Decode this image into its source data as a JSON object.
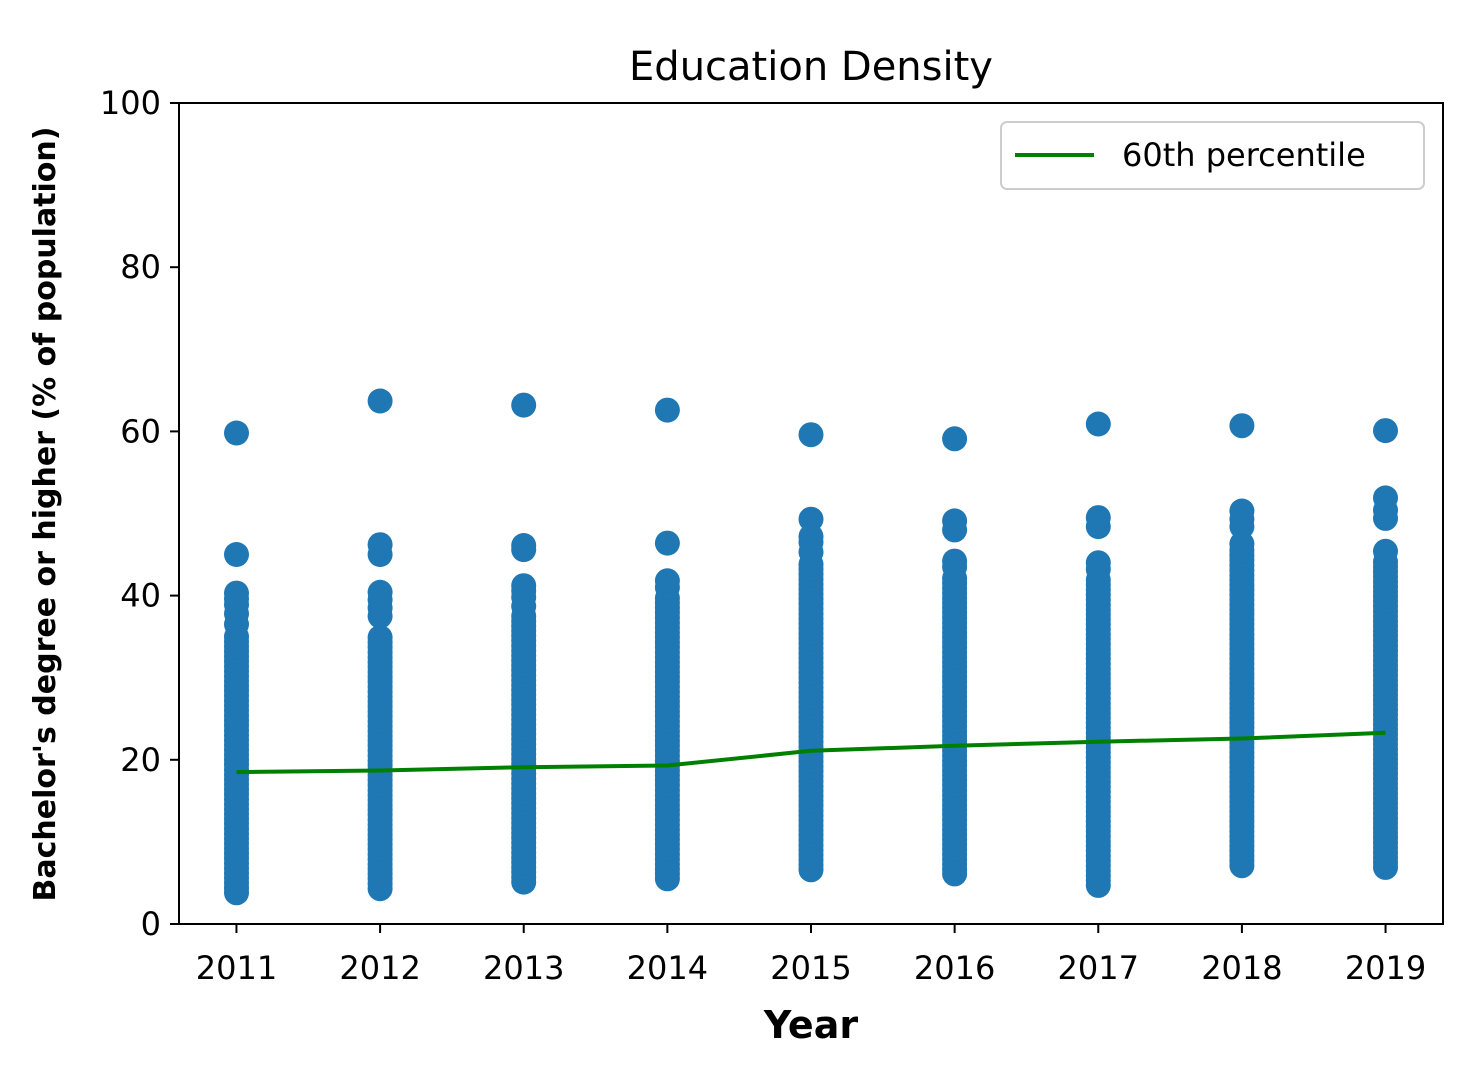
{
  "chart_data": {
    "type": "scatter",
    "title": "Education Density",
    "xlabel": "Year",
    "ylabel": "Bachelor's degree or higher (% of population)",
    "xlim": [
      2010.6,
      2019.4
    ],
    "ylim": [
      0,
      100
    ],
    "x_ticks": [
      2011,
      2012,
      2013,
      2014,
      2015,
      2016,
      2017,
      2018,
      2019
    ],
    "y_ticks": [
      0,
      20,
      40,
      60,
      80,
      100
    ],
    "legend_position": "top-right",
    "grid": false,
    "scatter_series": {
      "name": "",
      "color": "#1f77b4",
      "points": [
        {
          "x": 2011,
          "min": 3.8,
          "dense_max": 35.5,
          "extra": [
            36.5,
            37.8,
            38.9,
            39.6,
            40.3,
            45.0,
            59.8
          ]
        },
        {
          "x": 2012,
          "min": 4.3,
          "dense_max": 35.0,
          "extra": [
            37.5,
            38.5,
            39.5,
            40.4,
            45.0,
            46.2,
            63.7
          ]
        },
        {
          "x": 2013,
          "min": 5.1,
          "dense_max": 37.5,
          "extra": [
            38.7,
            39.8,
            40.6,
            41.2,
            45.6,
            46.1,
            63.2
          ]
        },
        {
          "x": 2014,
          "min": 5.5,
          "dense_max": 40.0,
          "extra": [
            41.0,
            41.8,
            46.4,
            62.6
          ]
        },
        {
          "x": 2015,
          "min": 6.6,
          "dense_max": 44.0,
          "extra": [
            45.3,
            46.5,
            47.2,
            49.3,
            59.6
          ]
        },
        {
          "x": 2016,
          "min": 6.1,
          "dense_max": 42.5,
          "extra": [
            43.5,
            44.2,
            48.0,
            49.1,
            59.1
          ]
        },
        {
          "x": 2017,
          "min": 4.7,
          "dense_max": 42.0,
          "extra": [
            43.2,
            44.0,
            48.4,
            49.5,
            60.9
          ]
        },
        {
          "x": 2018,
          "min": 7.1,
          "dense_max": 45.5,
          "extra": [
            46.3,
            48.4,
            49.3,
            50.3,
            60.7
          ]
        },
        {
          "x": 2019,
          "min": 6.9,
          "dense_max": 44.5,
          "extra": [
            45.4,
            49.4,
            50.4,
            51.9,
            60.1
          ]
        }
      ]
    },
    "series": [
      {
        "name": "60th percentile",
        "type": "line",
        "color": "#008000",
        "x": [
          2011,
          2012,
          2013,
          2014,
          2015,
          2016,
          2017,
          2018,
          2019
        ],
        "values": [
          18.5,
          18.7,
          19.1,
          19.3,
          21.1,
          21.7,
          22.2,
          22.6,
          23.3
        ]
      }
    ]
  }
}
